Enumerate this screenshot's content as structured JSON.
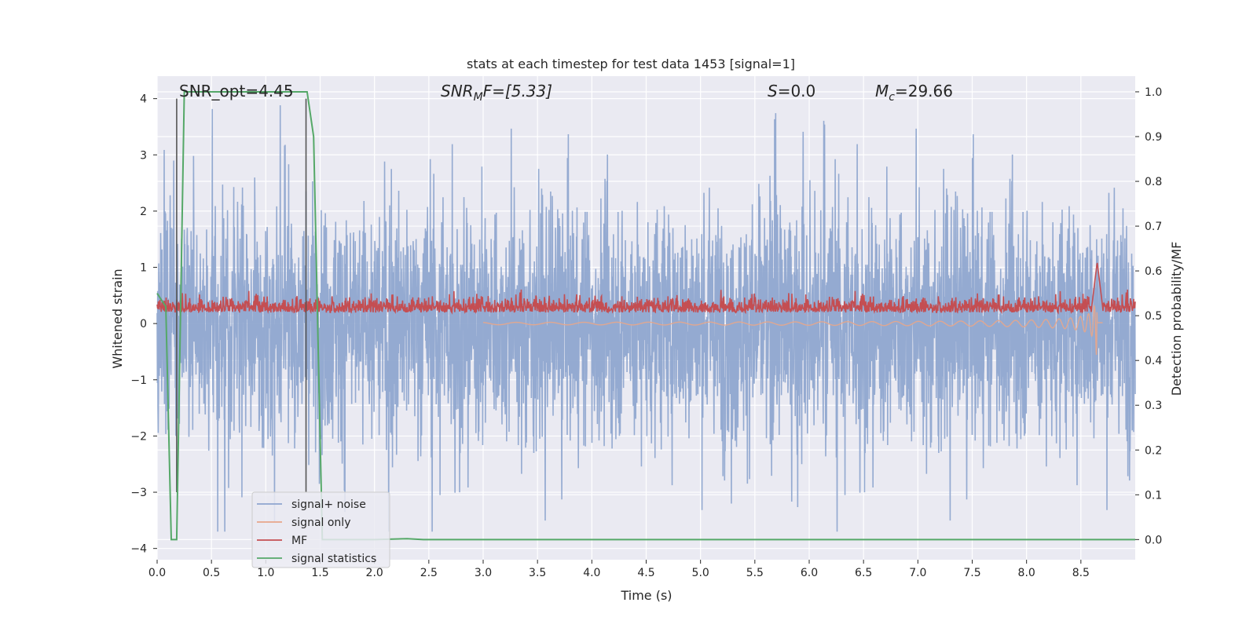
{
  "chart_data": {
    "type": "line",
    "title": "stats at each timestep for test data 1453 [signal=1]",
    "xlabel": "Time (s)",
    "ylabel_left": "Whitened strain",
    "ylabel_right": "Detection probability/MF",
    "xlim": [
      0.0,
      9.0
    ],
    "ylim_left": [
      -4.2,
      4.4
    ],
    "ylim_right": [
      -0.045,
      1.035
    ],
    "x_ticks": [
      "0.0",
      "0.5",
      "1.0",
      "1.5",
      "2.0",
      "2.5",
      "3.0",
      "3.5",
      "4.0",
      "4.5",
      "5.0",
      "5.5",
      "6.0",
      "6.5",
      "7.0",
      "7.5",
      "8.0",
      "8.5"
    ],
    "y_left_ticks": [
      "4",
      "3",
      "2",
      "1",
      "0",
      "−1",
      "−2",
      "−3",
      "−4"
    ],
    "y_right_ticks": [
      "1.0",
      "0.9",
      "0.8",
      "0.7",
      "0.6",
      "0.5",
      "0.4",
      "0.3",
      "0.2",
      "0.1",
      "0.0"
    ],
    "grid": true,
    "legend_position": "lower-left",
    "annotations": {
      "snr_opt": "SNR_opt=4.45",
      "snr_mf_italic": "SNR",
      "snr_mf_sub": "M",
      "snr_mf_rest": "F=[5.33]",
      "s_italic": "S",
      "s_rest": "=0.0",
      "mc_italic": "M",
      "mc_sub": "c",
      "mc_rest": "=29.66"
    },
    "series": [
      {
        "name": "signal+ noise",
        "color": "#8fa6cf",
        "axis": "left",
        "description_values": {
          "band_typical": [
            -1.4,
            1.7
          ],
          "peaks": [
            4.0,
            3.0,
            -3.6
          ]
        }
      },
      {
        "name": "signal only",
        "color": "#e8a68a",
        "axis": "left",
        "chirp_peak_time": 8.65,
        "chirp_peak": [
          -1.1,
          1.1
        ]
      },
      {
        "name": "MF",
        "color": "#c44e52",
        "axis": "right",
        "band": [
          0.5,
          0.55
        ],
        "peak": {
          "x": 8.65,
          "y": 0.62
        }
      },
      {
        "name": "signal statistics",
        "color": "#55a868",
        "axis": "right",
        "points": [
          [
            0.0,
            0.55
          ],
          [
            0.08,
            0.52
          ],
          [
            0.13,
            0.0
          ],
          [
            0.18,
            0.0
          ],
          [
            0.25,
            1.0
          ],
          [
            1.38,
            1.0
          ],
          [
            1.44,
            0.9
          ],
          [
            1.52,
            0.0
          ],
          [
            2.0,
            0.0
          ],
          [
            2.3,
            0.002
          ],
          [
            2.45,
            0.0
          ],
          [
            9.0,
            0.0
          ]
        ]
      }
    ],
    "vertical_lines": [
      {
        "x": 0.18,
        "color": "#555555"
      },
      {
        "x": 1.37,
        "color": "#555555"
      }
    ]
  }
}
